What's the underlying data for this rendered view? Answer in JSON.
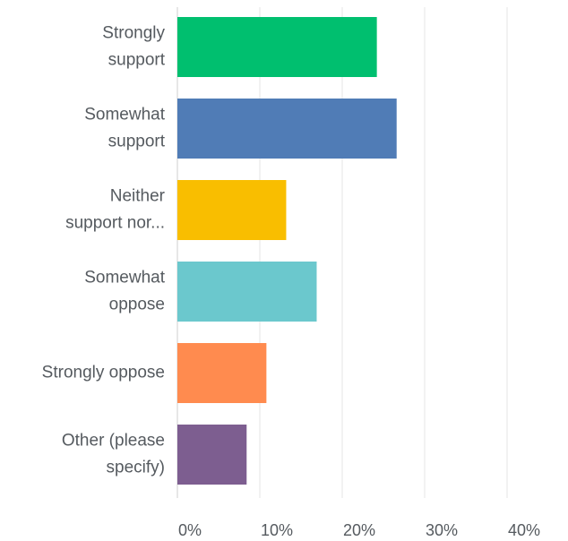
{
  "chart_data": {
    "type": "bar",
    "orientation": "horizontal",
    "categories": [
      [
        "Strongly",
        "support"
      ],
      [
        "Somewhat",
        "support"
      ],
      [
        "Neither",
        "support nor..."
      ],
      [
        "Somewhat",
        "oppose"
      ],
      [
        "Strongly oppose"
      ],
      [
        "Other (please",
        "specify)"
      ]
    ],
    "values": [
      24.2,
      26.6,
      13.2,
      16.9,
      10.8,
      8.4
    ],
    "colors": [
      "#00bf6f",
      "#507cb6",
      "#f9be00",
      "#6bc8cd",
      "#ff8b4f",
      "#7d5e90"
    ],
    "xlim": [
      0,
      47
    ],
    "xticks": [
      0,
      10,
      20,
      30,
      40
    ],
    "xtick_labels": [
      "0%",
      "10%",
      "20%",
      "30%",
      "40%"
    ],
    "grid": true,
    "title": "",
    "xlabel": "",
    "ylabel": ""
  }
}
